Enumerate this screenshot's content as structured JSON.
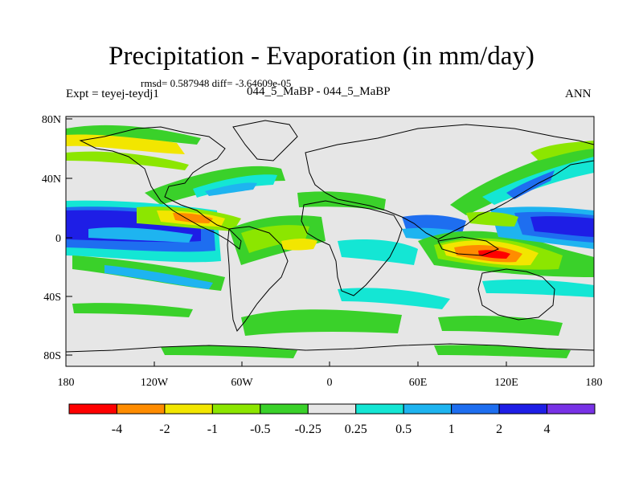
{
  "title": "Precipitation - Evaporation (in mm/day)",
  "stats": "rmsd= 0.587948 diff= -3.64609e-05",
  "expt": "Expt = teyej-teydj1",
  "case": "044_5_MaBP - 044_5_MaBP",
  "season": "ANN",
  "lat_ticks": [
    "80N",
    "40N",
    "0",
    "40S",
    "80S"
  ],
  "lon_ticks": [
    "180",
    "120W",
    "60W",
    "0",
    "60E",
    "120E",
    "180"
  ],
  "colorbar": {
    "colors": [
      "#ff0000",
      "#ff8c00",
      "#f2e600",
      "#8ce600",
      "#3ad12a",
      "#e6e6e6",
      "#14e6d4",
      "#1eb4f0",
      "#1e6ef0",
      "#1e1ee6",
      "#7832e6"
    ],
    "labels": [
      "-4",
      "-2",
      "-1",
      "-0.5",
      "-0.25",
      "0.25",
      "0.5",
      "1",
      "2",
      "4"
    ]
  }
}
